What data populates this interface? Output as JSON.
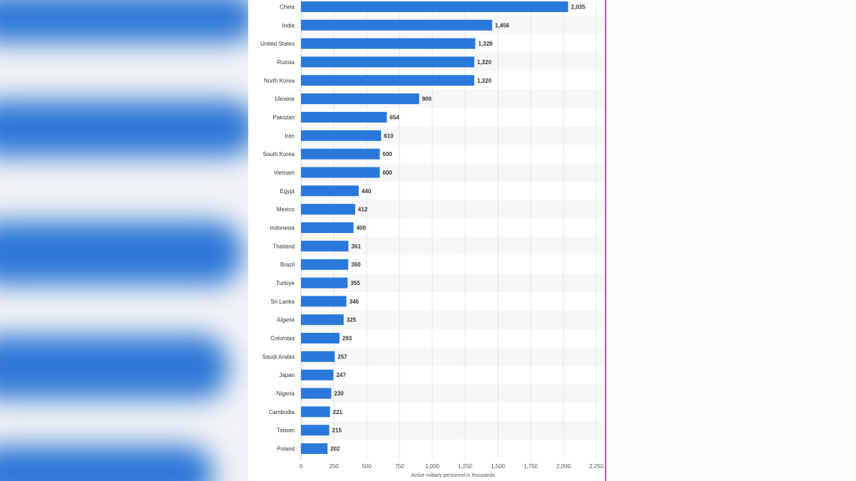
{
  "chart_data": {
    "type": "bar",
    "orientation": "horizontal",
    "categories": [
      "China",
      "India",
      "United States",
      "Russia",
      "North Korea",
      "Ukraine",
      "Pakistan",
      "Iran",
      "South Korea",
      "Vietnam",
      "Egypt",
      "Mexico",
      "Indonesia",
      "Thailand",
      "Brazil",
      "Turkiye",
      "Sri Lanka",
      "Algeria",
      "Colombia",
      "Saudi Arabia",
      "Japan",
      "Nigeria",
      "Cambodia",
      "Taiwan",
      "Poland"
    ],
    "values": [
      2035,
      1456,
      1328,
      1320,
      1320,
      900,
      654,
      610,
      600,
      600,
      440,
      412,
      400,
      361,
      360,
      355,
      346,
      325,
      293,
      257,
      247,
      230,
      221,
      215,
      202
    ],
    "value_labels": [
      "2,035",
      "1,456",
      "1,328",
      "1,320",
      "1,320",
      "900",
      "654",
      "610",
      "600",
      "600",
      "440",
      "412",
      "400",
      "361",
      "360",
      "355",
      "346",
      "325",
      "293",
      "257",
      "247",
      "230",
      "221",
      "215",
      "202"
    ],
    "xticks": [
      0,
      250,
      500,
      750,
      1000,
      1250,
      1500,
      1750,
      2000,
      2250
    ],
    "xtick_labels": [
      "0",
      "250",
      "500",
      "750",
      "1,000",
      "1,250",
      "1,500",
      "1,750",
      "2,000",
      "2,250"
    ],
    "xlim": [
      0,
      2250
    ],
    "xlabel": "Active military personnel in thousands",
    "ylabel": "",
    "title": "",
    "grid": true,
    "bar_color": "#2a78dc",
    "alt_row_color": "#f7f7f7"
  }
}
